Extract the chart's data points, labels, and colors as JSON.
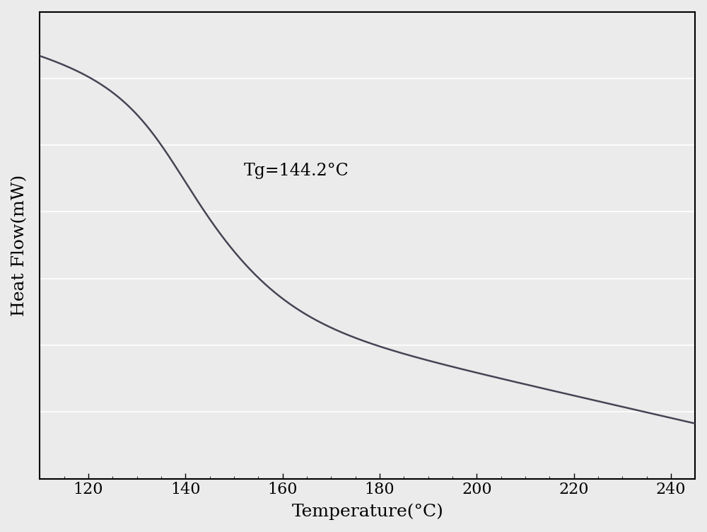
{
  "xlabel": "Temperature(°C)",
  "ylabel": "Heat Flow(mW)",
  "annotation": "Tg=144.2°C",
  "xlim": [
    110,
    245
  ],
  "xticks": [
    120,
    140,
    160,
    180,
    200,
    220,
    240
  ],
  "line_color": "#454555",
  "background_color": "#ebebeb",
  "grid_color": "#ffffff",
  "grid_linewidth": 1.2,
  "xlabel_fontsize": 18,
  "ylabel_fontsize": 18,
  "tick_fontsize": 16,
  "annotation_fontsize": 17,
  "line_width": 1.8
}
